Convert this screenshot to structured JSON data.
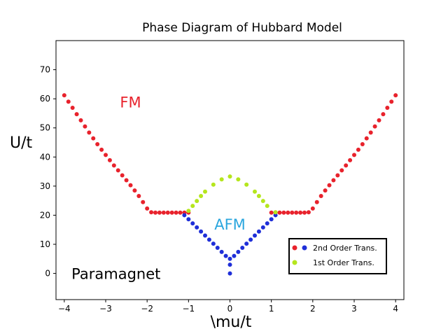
{
  "chart_data": {
    "type": "scatter",
    "title": "Phase Diagram of Hubbard Model",
    "xlabel": "\\mu/t",
    "ylabel": "U/t",
    "xlim": [
      -4.2,
      4.2
    ],
    "ylim": [
      -9,
      80
    ],
    "xticks": [
      -4,
      -3,
      -2,
      -1,
      0,
      1,
      2,
      3,
      4
    ],
    "yticks": [
      0,
      10,
      20,
      30,
      40,
      50,
      60,
      70
    ],
    "grid": false,
    "legend_position": "lower-right",
    "region_labels": [
      {
        "text": "FM",
        "color": "#e8222c",
        "x": -2.4,
        "y": 59
      },
      {
        "text": "AFM",
        "color": "#2aa6de",
        "x": 0.0,
        "y": 17
      },
      {
        "text": "Paramagnet",
        "color": "#000000",
        "x": -2.75,
        "y": 0
      }
    ],
    "series": [
      {
        "name": "2nd Order Trans.",
        "color": "#e8222c",
        "alt_color": "#1f2fd8",
        "points": [
          [
            -4.0,
            61.2
          ],
          [
            -3.9,
            59.0
          ],
          [
            -3.8,
            56.9
          ],
          [
            -3.7,
            54.7
          ],
          [
            -3.6,
            52.6
          ],
          [
            -3.5,
            50.5
          ],
          [
            -3.4,
            48.4
          ],
          [
            -3.3,
            46.4
          ],
          [
            -3.2,
            44.4
          ],
          [
            -3.1,
            42.5
          ],
          [
            -3.0,
            40.7
          ],
          [
            -2.9,
            38.9
          ],
          [
            -2.8,
            37.1
          ],
          [
            -2.7,
            35.4
          ],
          [
            -2.6,
            33.7
          ],
          [
            -2.5,
            32.0
          ],
          [
            -2.4,
            30.3
          ],
          [
            -2.3,
            28.5
          ],
          [
            -2.2,
            26.6
          ],
          [
            -2.1,
            24.5
          ],
          [
            -2.0,
            22.3
          ],
          [
            -1.9,
            21.0
          ],
          [
            -1.8,
            20.9
          ],
          [
            -1.7,
            20.9
          ],
          [
            -1.6,
            20.9
          ],
          [
            -1.5,
            20.9
          ],
          [
            -1.4,
            20.9
          ],
          [
            -1.3,
            20.9
          ],
          [
            -1.2,
            20.9
          ],
          [
            -1.1,
            20.9
          ],
          [
            -1.0,
            20.9
          ],
          [
            1.0,
            20.9
          ],
          [
            1.1,
            20.9
          ],
          [
            1.2,
            20.9
          ],
          [
            1.3,
            20.9
          ],
          [
            1.4,
            20.9
          ],
          [
            1.5,
            20.9
          ],
          [
            1.6,
            20.9
          ],
          [
            1.7,
            20.9
          ],
          [
            1.8,
            20.9
          ],
          [
            1.9,
            21.0
          ],
          [
            2.0,
            22.3
          ],
          [
            2.1,
            24.5
          ],
          [
            2.2,
            26.6
          ],
          [
            2.3,
            28.5
          ],
          [
            2.4,
            30.3
          ],
          [
            2.5,
            32.0
          ],
          [
            2.6,
            33.7
          ],
          [
            2.7,
            35.4
          ],
          [
            2.8,
            37.1
          ],
          [
            2.9,
            38.9
          ],
          [
            3.0,
            40.7
          ],
          [
            3.1,
            42.5
          ],
          [
            3.2,
            44.4
          ],
          [
            3.3,
            46.4
          ],
          [
            3.4,
            48.4
          ],
          [
            3.5,
            50.5
          ],
          [
            3.6,
            52.6
          ],
          [
            3.7,
            54.7
          ],
          [
            3.8,
            56.9
          ],
          [
            3.9,
            59.0
          ],
          [
            4.0,
            61.2
          ]
        ],
        "alt_points": [
          [
            -1.1,
            20.0
          ],
          [
            -1.0,
            18.6
          ],
          [
            -0.9,
            17.2
          ],
          [
            -0.8,
            15.8
          ],
          [
            -0.7,
            14.4
          ],
          [
            -0.6,
            13.0
          ],
          [
            -0.5,
            11.6
          ],
          [
            -0.4,
            10.2
          ],
          [
            -0.3,
            8.8
          ],
          [
            -0.2,
            7.4
          ],
          [
            -0.1,
            6.0
          ],
          [
            0.0,
            5.0
          ],
          [
            0.0,
            3.0
          ],
          [
            0.0,
            0.0
          ],
          [
            0.1,
            6.0
          ],
          [
            0.2,
            7.4
          ],
          [
            0.3,
            8.8
          ],
          [
            0.4,
            10.2
          ],
          [
            0.5,
            11.6
          ],
          [
            0.6,
            13.0
          ],
          [
            0.7,
            14.4
          ],
          [
            0.8,
            15.8
          ],
          [
            0.9,
            17.2
          ],
          [
            1.0,
            18.6
          ],
          [
            1.1,
            20.0
          ]
        ]
      },
      {
        "name": "1st Order Trans.",
        "color": "#b5e61d",
        "points": [
          [
            -1.0,
            21.5
          ],
          [
            -0.9,
            23.2
          ],
          [
            -0.8,
            24.9
          ],
          [
            -0.7,
            26.6
          ],
          [
            -0.6,
            28.1
          ],
          [
            -0.4,
            30.5
          ],
          [
            -0.2,
            32.3
          ],
          [
            0.0,
            33.3
          ],
          [
            0.2,
            32.3
          ],
          [
            0.4,
            30.5
          ],
          [
            0.6,
            28.1
          ],
          [
            0.7,
            26.6
          ],
          [
            0.8,
            24.9
          ],
          [
            0.9,
            23.2
          ],
          [
            1.1,
            21.0
          ]
        ]
      }
    ],
    "legend": [
      {
        "label": "2nd Order Trans.",
        "colors": [
          "#e8222c",
          "#1f2fd8"
        ]
      },
      {
        "label": "1st Order Trans.",
        "colors": [
          "#b5e61d"
        ]
      }
    ]
  }
}
